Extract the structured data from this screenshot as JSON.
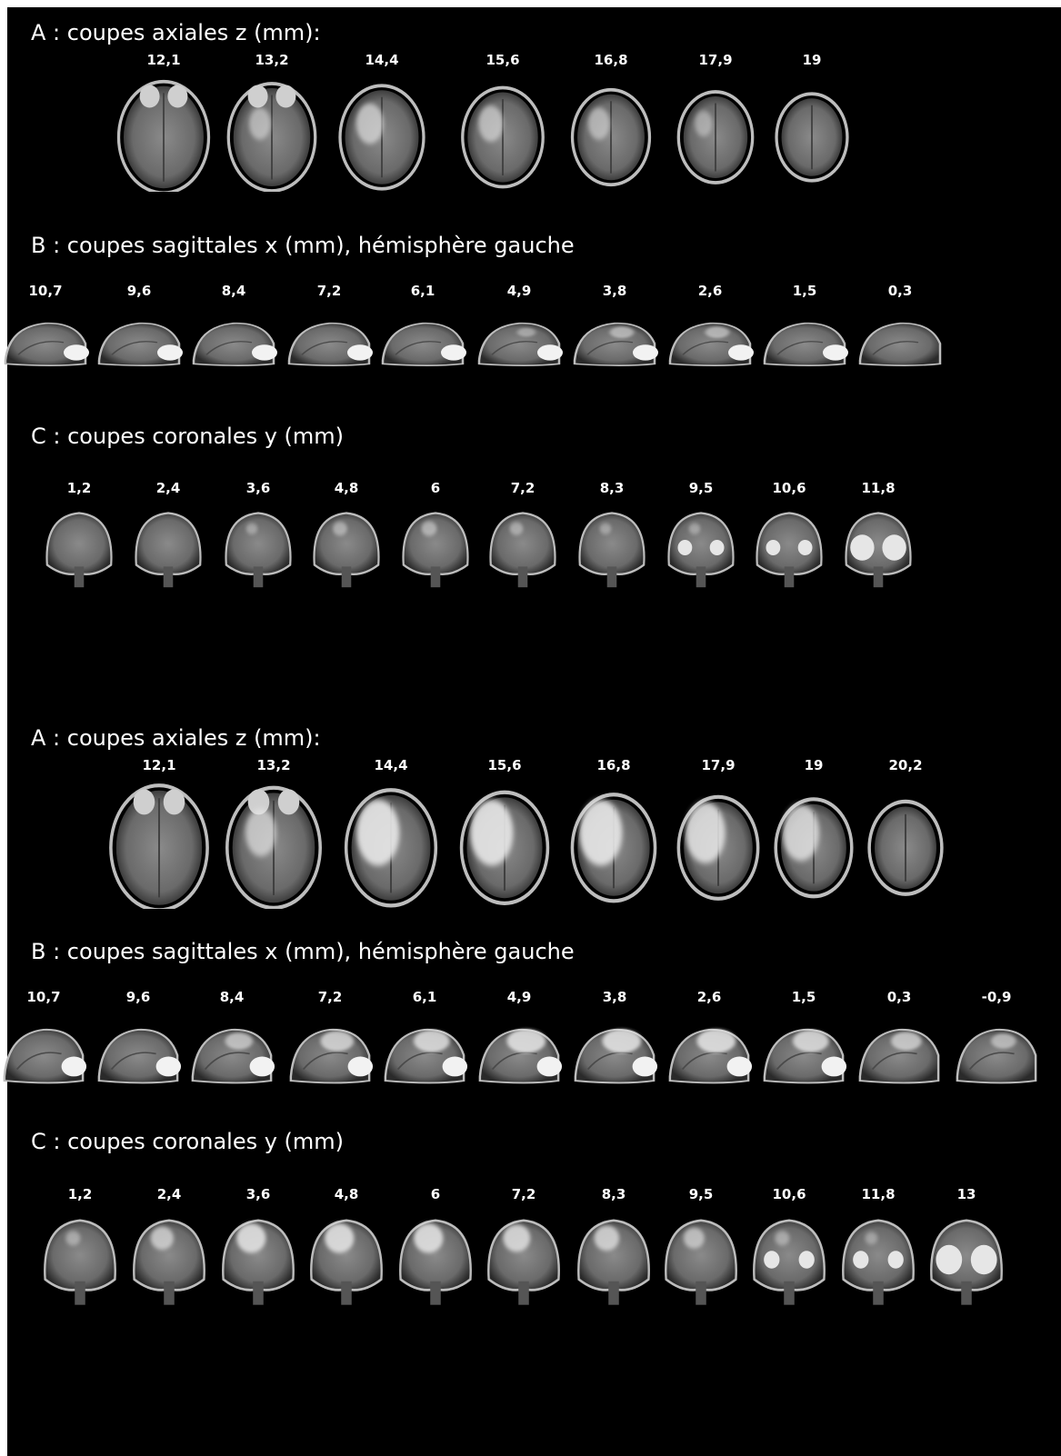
{
  "colors": {
    "background": "#000000",
    "text": "#ffffff",
    "lesion": "#e8e8e8"
  },
  "panels": [
    {
      "name": "panel-1",
      "axial": {
        "title": "A : coupes axiales z (mm):",
        "labels": [
          "12,1",
          "13,2",
          "14,4",
          "15,6",
          "16,8",
          "17,9",
          "19"
        ],
        "lesion": [
          0,
          0.35,
          0.55,
          0.45,
          0.35,
          0.2,
          0
        ]
      },
      "sagittal": {
        "title": "B : coupes sagittales x (mm), hémisphère gauche",
        "labels": [
          "10,7",
          "9,6",
          "8,4",
          "7,2",
          "6,1",
          "4,9",
          "3,8",
          "2,6",
          "1,5",
          "0,3"
        ],
        "lesion": [
          0,
          0,
          0,
          0,
          0,
          0.15,
          0.35,
          0.35,
          0,
          0
        ]
      },
      "coronal": {
        "title": "C : coupes coronales y (mm)",
        "labels": [
          "1,2",
          "2,4",
          "3,6",
          "4,8",
          "6",
          "7,2",
          "8,3",
          "9,5",
          "10,6",
          "11,8"
        ],
        "lesion": [
          0,
          0,
          0.1,
          0.25,
          0.3,
          0.2,
          0.1,
          0.1,
          0,
          0
        ]
      }
    },
    {
      "name": "panel-2",
      "axial": {
        "title": "A : coupes axiales z (mm):",
        "labels": [
          "12,1",
          "13,2",
          "14,4",
          "15,6",
          "16,8",
          "17,9",
          "19",
          "20,2"
        ],
        "lesion": [
          0,
          0.6,
          1,
          1,
          1,
          0.9,
          0.8,
          0
        ]
      },
      "sagittal": {
        "title": "B : coupes sagittales x (mm), hémisphère gauche",
        "labels": [
          "10,7",
          "9,6",
          "8,4",
          "7,2",
          "6,1",
          "4,9",
          "3,8",
          "2,6",
          "1,5",
          "0,3",
          "-0,9"
        ],
        "lesion": [
          0,
          0,
          0.5,
          0.7,
          0.8,
          0.9,
          0.9,
          0.9,
          0.8,
          0.6,
          0.4
        ]
      },
      "coronal": {
        "title": "C : coupes coronales y (mm)",
        "labels": [
          "1,2",
          "2,4",
          "3,6",
          "4,8",
          "6",
          "7,2",
          "8,3",
          "9,5",
          "10,6",
          "11,8",
          "13"
        ],
        "lesion": [
          0.2,
          0.6,
          0.9,
          0.9,
          0.9,
          0.8,
          0.7,
          0.5,
          0.2,
          0.1,
          0
        ]
      }
    }
  ]
}
